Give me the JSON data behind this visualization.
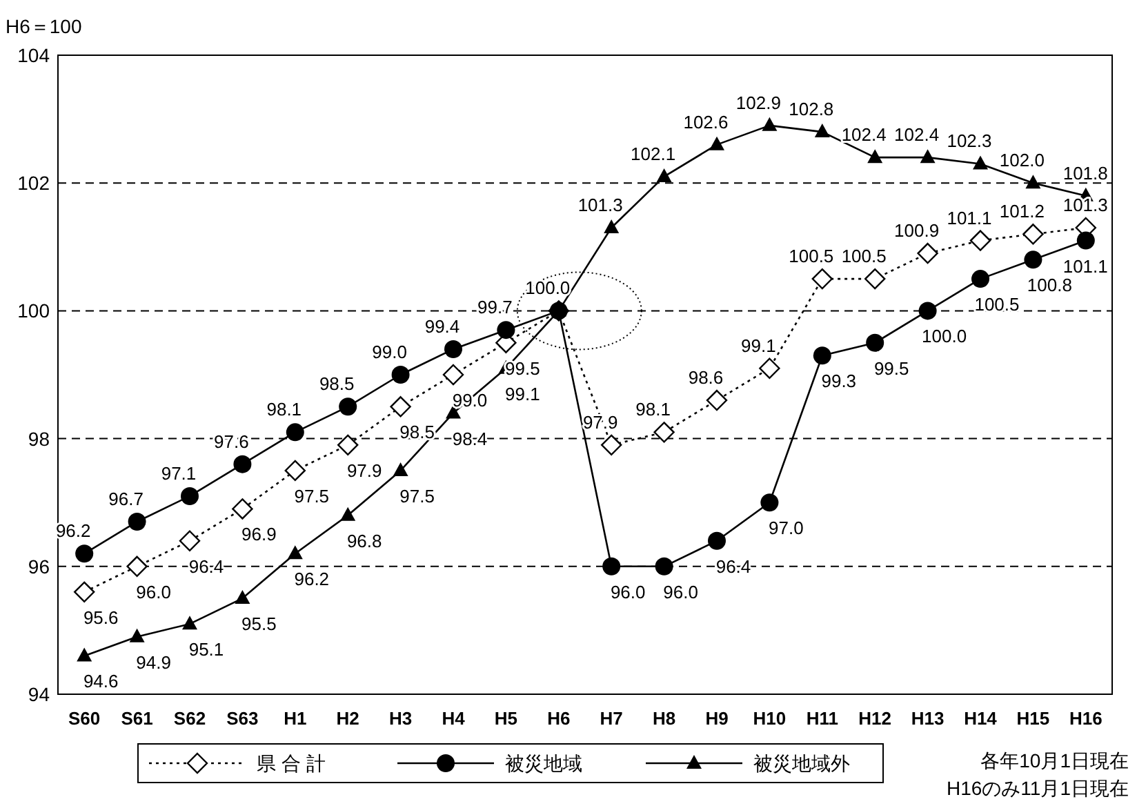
{
  "chart_data": {
    "type": "line",
    "ylabel": "H6＝100",
    "categories": [
      "S60",
      "S61",
      "S62",
      "S63",
      "H1",
      "H2",
      "H3",
      "H4",
      "H5",
      "H6",
      "H7",
      "H8",
      "H9",
      "H10",
      "H11",
      "H12",
      "H13",
      "H14",
      "H15",
      "H16"
    ],
    "ylim": [
      94,
      104
    ],
    "yticks": [
      94,
      96,
      98,
      100,
      102,
      104
    ],
    "grid": "y",
    "legend": "bottom",
    "data_labels": true,
    "series": [
      {
        "name": "県 合 計",
        "color": "#000000",
        "marker": "diamond",
        "line_style": "dotted",
        "values": [
          95.6,
          96.0,
          96.4,
          96.9,
          97.5,
          97.9,
          98.5,
          99.0,
          99.5,
          100.0,
          97.9,
          98.1,
          98.6,
          99.1,
          100.5,
          100.5,
          100.9,
          101.1,
          101.2,
          101.3
        ],
        "value_labels": [
          "95.6",
          "96.0",
          "96.4",
          "96.9",
          "97.5",
          "97.9",
          "98.5",
          "99.0",
          "99.5",
          null,
          "97.9",
          "98.1",
          "98.6",
          "99.1",
          "100.5",
          "100.5",
          "100.9",
          "101.1",
          "101.2",
          "101.3"
        ]
      },
      {
        "name": "被災地域",
        "color": "#000000",
        "marker": "circle",
        "line_style": "solid",
        "values": [
          96.2,
          96.7,
          97.1,
          97.6,
          98.1,
          98.5,
          99.0,
          99.4,
          99.7,
          100.0,
          96.0,
          96.0,
          96.4,
          97.0,
          99.3,
          99.5,
          100.0,
          100.5,
          100.8,
          101.1
        ],
        "value_labels": [
          "96.2",
          "96.7",
          "97.1",
          "97.6",
          "98.1",
          "98.5",
          "99.0",
          "99.4",
          "99.7",
          "100.0",
          "96.0",
          "96.0",
          "96.4",
          "97.0",
          "99.3",
          "99.5",
          "100.0",
          "100.5",
          "100.8",
          "101.1"
        ]
      },
      {
        "name": "被災地域外",
        "color": "#000000",
        "marker": "triangle",
        "line_style": "solid",
        "values": [
          94.6,
          94.9,
          95.1,
          95.5,
          96.2,
          96.8,
          97.5,
          98.4,
          99.1,
          100.0,
          101.3,
          102.1,
          102.6,
          102.9,
          102.8,
          102.4,
          102.4,
          102.3,
          102.0,
          101.8
        ],
        "value_labels": [
          "94.6",
          "94.9",
          "95.1",
          "95.5",
          "96.2",
          "96.8",
          "97.5",
          "98.4",
          "99.1",
          null,
          "101.3",
          "102.1",
          "102.6",
          "102.9",
          "102.8",
          "102.4",
          "102.4",
          "102.3",
          "102.0",
          "101.8"
        ]
      }
    ],
    "annotations": [
      "各年10月1日現在",
      "H16のみ11月1日現在"
    ]
  }
}
